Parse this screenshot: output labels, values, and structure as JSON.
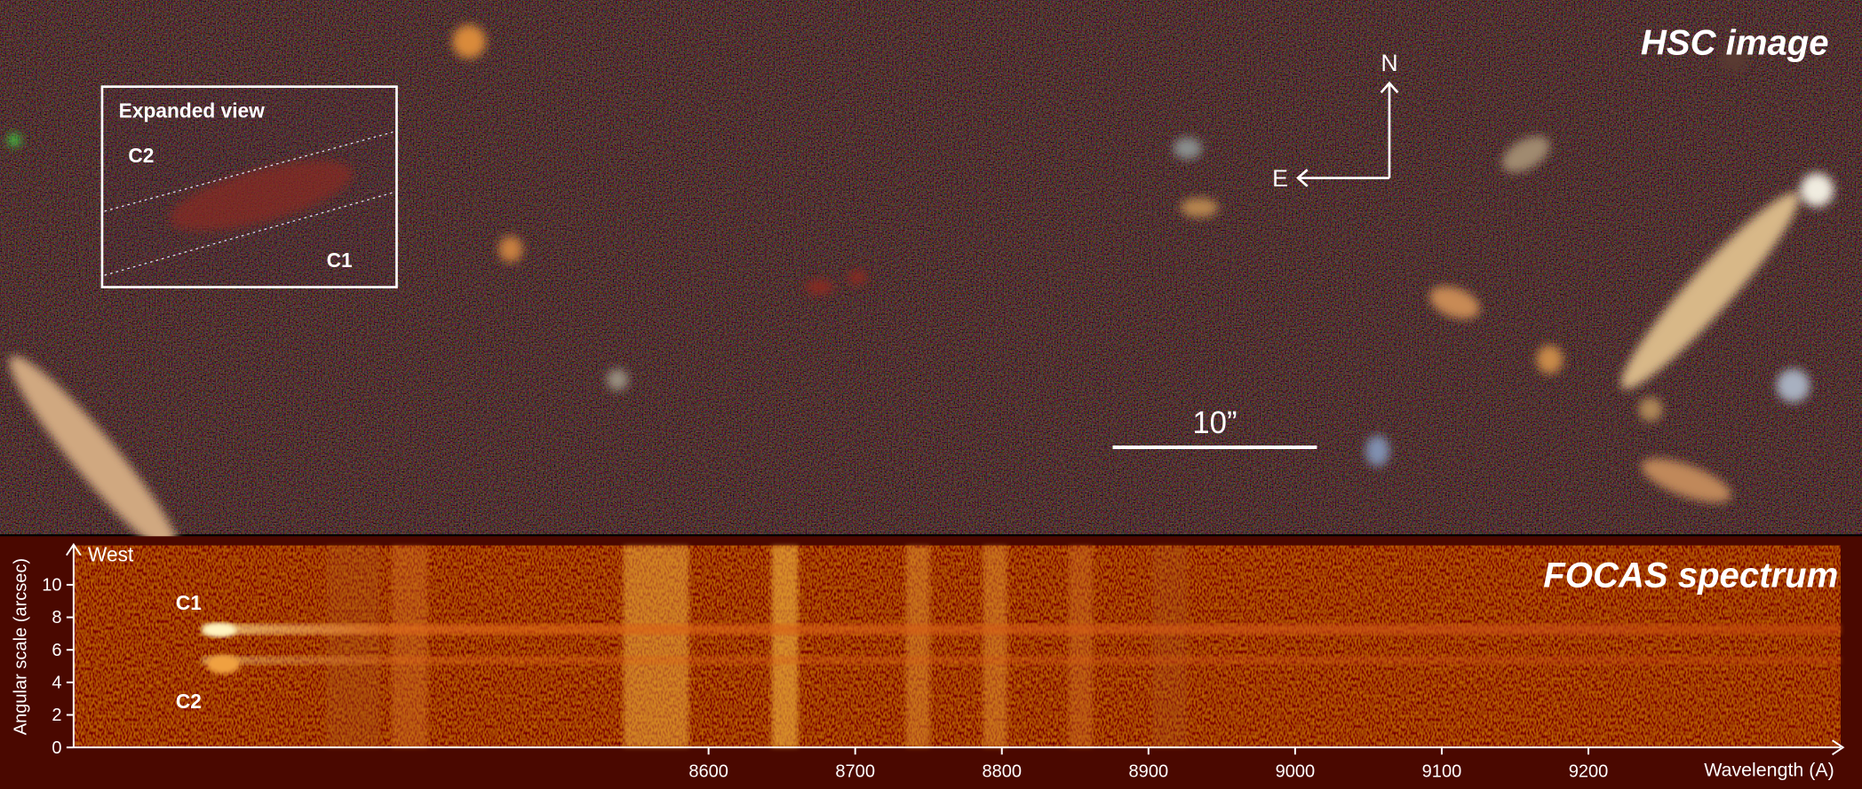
{
  "hsc_image": {
    "title": "HSC image",
    "compass": {
      "north": "N",
      "east": "E"
    },
    "scale_bar": "10”",
    "inset": {
      "title": "Expanded view",
      "labels": [
        "C2",
        "C1"
      ]
    }
  },
  "focas_spectrum": {
    "title": "FOCAS spectrum",
    "direction": "West",
    "labels": [
      "C1",
      "C2"
    ],
    "x_label": "Wavelength (A)",
    "y_label": "Angular scale (arcsec)",
    "xlim": [
      8167,
      9372
    ],
    "xticks": [
      8600,
      8700,
      8800,
      8900,
      9000,
      9100,
      9200
    ],
    "ylim": [
      0,
      12.4
    ],
    "yticks": [
      0,
      2,
      4,
      6,
      8,
      10
    ]
  }
}
